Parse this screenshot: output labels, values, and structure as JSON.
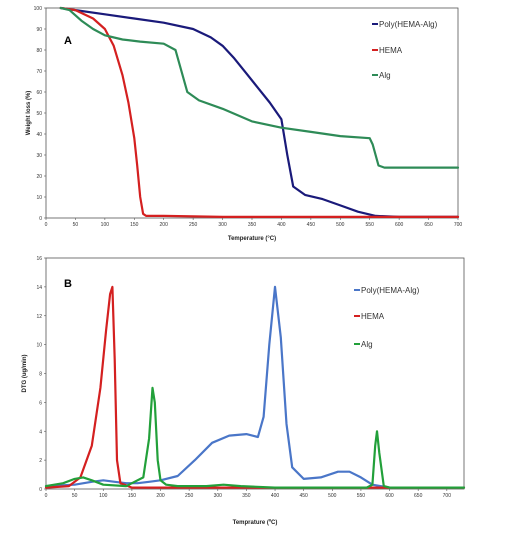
{
  "colors": {
    "poly": "#1a1a7a",
    "hema": "#d42020",
    "alg": "#2e8b57",
    "poly_dtg": "#4a76c8",
    "alg_dtg": "#22a03a"
  },
  "chart_data": [
    {
      "type": "line",
      "panel_label": "A",
      "xlabel": "Temperature (°C)",
      "ylabel": "Weight loss (%)",
      "xlim": [
        0,
        700
      ],
      "ylim": [
        0,
        100
      ],
      "x_ticks": [
        "0",
        "50",
        "100",
        "150",
        "200",
        "250",
        "300",
        "350",
        "400",
        "450",
        "500",
        "550",
        "600",
        "650",
        "700"
      ],
      "y_ticks": [
        "0",
        "10",
        "20",
        "30",
        "40",
        "50",
        "60",
        "70",
        "80",
        "90",
        "100"
      ],
      "legend_position": "right",
      "series": [
        {
          "name": "Poly(HEMA-Alg)",
          "color_key": "poly",
          "x": [
            25,
            50,
            100,
            150,
            200,
            250,
            280,
            300,
            320,
            340,
            360,
            380,
            400,
            410,
            420,
            440,
            470,
            500,
            530,
            560,
            600,
            700
          ],
          "y": [
            100,
            99,
            97,
            95,
            93,
            90,
            86,
            82,
            76,
            69,
            62,
            55,
            47,
            30,
            15,
            11,
            9,
            6,
            3,
            1,
            0.5,
            0.5
          ]
        },
        {
          "name": "HEMA",
          "color_key": "hema",
          "x": [
            25,
            50,
            80,
            100,
            115,
            130,
            140,
            150,
            155,
            160,
            165,
            170,
            200,
            300,
            400,
            500,
            600,
            700
          ],
          "y": [
            100,
            99,
            95,
            90,
            82,
            68,
            55,
            38,
            25,
            10,
            2,
            1,
            1,
            0.5,
            0.5,
            0.5,
            0.5,
            0.5
          ]
        },
        {
          "name": "Alg",
          "color_key": "alg",
          "x": [
            25,
            40,
            60,
            80,
            100,
            130,
            160,
            200,
            220,
            230,
            240,
            260,
            300,
            350,
            400,
            450,
            500,
            550,
            555,
            565,
            575,
            600,
            650,
            700
          ],
          "y": [
            100,
            99,
            94,
            90,
            87,
            85,
            84,
            83,
            80,
            70,
            60,
            56,
            52,
            46,
            43,
            41,
            39,
            38,
            35,
            25,
            24,
            24,
            24,
            24
          ]
        }
      ]
    },
    {
      "type": "line",
      "panel_label": "B",
      "xlabel": "Temprature (ºC)",
      "ylabel": "DTG (ug/min)",
      "xlim": [
        0,
        730
      ],
      "ylim": [
        0,
        16
      ],
      "x_ticks": [
        "0",
        "50",
        "100",
        "150",
        "200",
        "250",
        "300",
        "350",
        "400",
        "450",
        "500",
        "550",
        "600",
        "650",
        "700"
      ],
      "y_ticks": [
        "0",
        "2",
        "4",
        "6",
        "8",
        "10",
        "12",
        "14",
        "16"
      ],
      "legend_position": "right",
      "series": [
        {
          "name": "Poly(HEMA-Alg)",
          "color_key": "poly_dtg",
          "x": [
            0,
            50,
            80,
            100,
            120,
            140,
            160,
            180,
            200,
            230,
            260,
            290,
            320,
            350,
            370,
            380,
            390,
            400,
            410,
            420,
            430,
            450,
            480,
            510,
            530,
            550,
            570,
            600,
            650,
            730
          ],
          "y": [
            0.2,
            0.3,
            0.5,
            0.6,
            0.5,
            0.4,
            0.4,
            0.5,
            0.6,
            0.9,
            2.0,
            3.2,
            3.7,
            3.8,
            3.6,
            5.0,
            10.0,
            14.0,
            10.5,
            4.5,
            1.5,
            0.7,
            0.8,
            1.2,
            1.2,
            0.8,
            0.3,
            0.1,
            0.1,
            0.1
          ]
        },
        {
          "name": "HEMA",
          "color_key": "hema",
          "x": [
            0,
            40,
            60,
            80,
            95,
            105,
            112,
            116,
            120,
            124,
            130,
            150,
            300,
            730
          ],
          "y": [
            0.1,
            0.2,
            0.8,
            3.0,
            7.0,
            11.0,
            13.5,
            14.0,
            9.0,
            2.0,
            0.4,
            0.1,
            0.1,
            0.1
          ]
        },
        {
          "name": "Alg",
          "color_key": "alg_dtg",
          "x": [
            0,
            30,
            50,
            65,
            80,
            100,
            140,
            170,
            180,
            186,
            190,
            195,
            200,
            210,
            230,
            280,
            310,
            340,
            400,
            500,
            560,
            570,
            575,
            578,
            582,
            590,
            600,
            730
          ],
          "y": [
            0.2,
            0.4,
            0.7,
            0.8,
            0.6,
            0.3,
            0.2,
            0.8,
            3.5,
            7.0,
            6.0,
            2.0,
            0.6,
            0.3,
            0.2,
            0.2,
            0.3,
            0.2,
            0.1,
            0.1,
            0.1,
            0.3,
            3.0,
            4.0,
            2.5,
            0.2,
            0.1,
            0.1
          ]
        }
      ]
    }
  ]
}
